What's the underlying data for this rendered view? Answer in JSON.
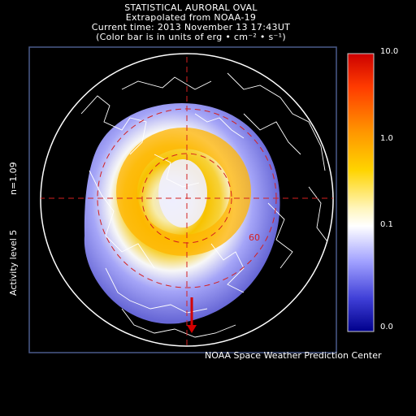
{
  "header": {
    "title": "STATISTICAL AURORAL OVAL",
    "subtitle": "Extrapolated from NOAA-19",
    "current_time": "Current time: 2013 November 13 17:43UT",
    "units_note": "(Color bar is in units of erg • cm⁻² • s⁻¹)"
  },
  "side_labels": {
    "activity": "Activity level 5",
    "n": "n=1.09"
  },
  "colorbar": {
    "ticks": [
      "10.0",
      "1.0",
      "0.1",
      "0.0"
    ],
    "colors": [
      "#cc0000",
      "#ff6a00",
      "#ffd400",
      "#ffffff",
      "#8080ff",
      "#2020c0",
      "#00008c"
    ]
  },
  "map": {
    "latitude_label": "60",
    "ocean_color": "#000000",
    "grid_color": "#d42020",
    "coast_color": "#ffffff"
  },
  "footer": {
    "credit": "NOAA Space Weather Prediction Center"
  }
}
